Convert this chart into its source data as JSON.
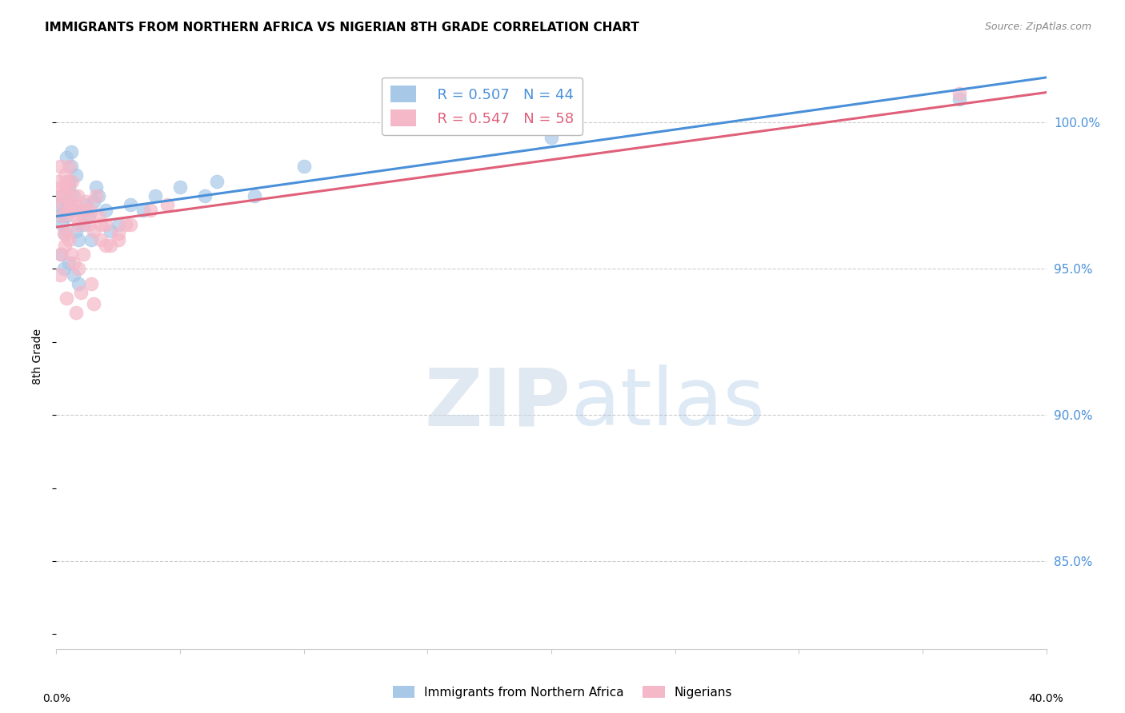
{
  "title": "IMMIGRANTS FROM NORTHERN AFRICA VS NIGERIAN 8TH GRADE CORRELATION CHART",
  "source": "Source: ZipAtlas.com",
  "ylabel": "8th Grade",
  "xlim": [
    0.0,
    40.0
  ],
  "ylim": [
    82.0,
    102.0
  ],
  "y_ticks": [
    85.0,
    90.0,
    95.0,
    100.0
  ],
  "y_tick_labels": [
    "85.0%",
    "90.0%",
    "95.0%",
    "100.0%"
  ],
  "blue_R": 0.507,
  "blue_N": 44,
  "pink_R": 0.547,
  "pink_N": 58,
  "legend_label_blue": "Immigrants from Northern Africa",
  "legend_label_pink": "Nigerians",
  "blue_color": "#a8c8e8",
  "pink_color": "#f5b8c8",
  "blue_line_color": "#4a90d9",
  "pink_line_color": "#e0607a",
  "blue_scatter_x": [
    0.1,
    0.15,
    0.2,
    0.25,
    0.3,
    0.35,
    0.4,
    0.45,
    0.5,
    0.55,
    0.6,
    0.65,
    0.7,
    0.8,
    0.9,
    1.0,
    1.1,
    1.2,
    1.3,
    1.5,
    1.7,
    2.0,
    2.5,
    3.0,
    4.0,
    5.0,
    6.5,
    8.0,
    10.0,
    0.2,
    0.3,
    0.5,
    0.7,
    0.9,
    1.4,
    2.2,
    3.5,
    6.0,
    20.0,
    36.5,
    0.4,
    0.6,
    0.8,
    1.6
  ],
  "blue_scatter_y": [
    97.2,
    96.8,
    97.5,
    96.5,
    97.0,
    96.2,
    96.8,
    97.3,
    97.8,
    98.0,
    98.5,
    97.0,
    97.5,
    96.3,
    96.0,
    97.0,
    96.5,
    97.2,
    96.8,
    97.3,
    97.5,
    97.0,
    96.5,
    97.2,
    97.5,
    97.8,
    98.0,
    97.5,
    98.5,
    95.5,
    95.0,
    95.2,
    94.8,
    94.5,
    96.0,
    96.3,
    97.0,
    97.5,
    99.5,
    100.8,
    98.8,
    99.0,
    98.2,
    97.8
  ],
  "pink_scatter_x": [
    0.05,
    0.1,
    0.15,
    0.2,
    0.25,
    0.3,
    0.35,
    0.4,
    0.45,
    0.5,
    0.55,
    0.6,
    0.65,
    0.7,
    0.75,
    0.8,
    0.85,
    0.9,
    1.0,
    1.1,
    1.2,
    1.3,
    1.4,
    1.5,
    1.6,
    1.7,
    1.8,
    2.0,
    2.2,
    2.5,
    0.2,
    0.35,
    0.5,
    0.7,
    0.9,
    1.1,
    1.4,
    0.15,
    0.3,
    0.6,
    1.0,
    1.5,
    2.0,
    0.4,
    0.8,
    3.0,
    3.8,
    0.25,
    0.55,
    1.2,
    1.8,
    2.5,
    0.35,
    0.65,
    2.8,
    4.5,
    36.5,
    0.45
  ],
  "pink_scatter_y": [
    97.5,
    98.0,
    98.5,
    97.8,
    97.2,
    97.5,
    98.2,
    98.0,
    97.8,
    98.5,
    97.0,
    97.5,
    98.0,
    97.2,
    96.8,
    97.0,
    97.5,
    96.5,
    97.0,
    96.8,
    97.3,
    96.5,
    97.0,
    96.3,
    97.5,
    96.8,
    96.0,
    96.5,
    95.8,
    96.2,
    95.5,
    95.8,
    96.0,
    95.2,
    95.0,
    95.5,
    94.5,
    94.8,
    96.2,
    95.5,
    94.2,
    93.8,
    95.8,
    94.0,
    93.5,
    96.5,
    97.0,
    96.8,
    97.2,
    97.0,
    96.5,
    96.0,
    97.8,
    97.0,
    96.5,
    97.2,
    101.0,
    96.2
  ],
  "watermark_zip": "ZIP",
  "watermark_atlas": "atlas"
}
